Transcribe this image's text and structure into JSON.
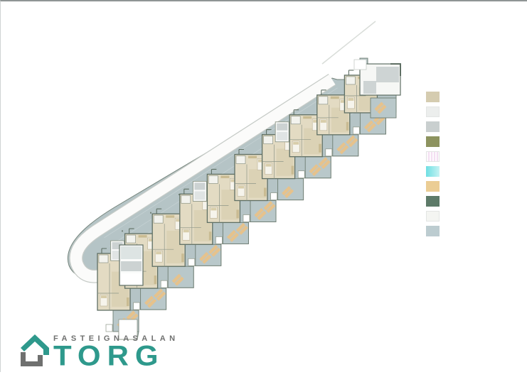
{
  "page": {
    "background": "#ffffff",
    "top_border": "#8f9595"
  },
  "logo": {
    "brand_top": "FASTEIGNASALAN",
    "brand_main": "TORG",
    "teal": "#2e998c",
    "gray": "#6f706f"
  },
  "legend": {
    "swatches": [
      {
        "name": "beige-floor",
        "style": "solid",
        "color": "#d5ccb0"
      },
      {
        "name": "light-gray",
        "style": "solid",
        "color": "#eceeed"
      },
      {
        "name": "gray",
        "style": "solid",
        "color": "#c9cfcf"
      },
      {
        "name": "olive-green",
        "style": "solid",
        "color": "#8d935f"
      },
      {
        "name": "pink-stripe",
        "style": "stripes",
        "color": "#f4dff2",
        "color2": "#fdfafd"
      },
      {
        "name": "cyan",
        "style": "gradient",
        "color": "#6fdfe3",
        "color2": "#c6f3f3"
      },
      {
        "name": "sand-tan",
        "style": "solid",
        "color": "#ebcd94"
      },
      {
        "name": "dark-green",
        "style": "solid",
        "color": "#5d7a68"
      },
      {
        "name": "near-white",
        "style": "solid",
        "color": "#f4f5f2"
      },
      {
        "name": "blue-gray-deck",
        "style": "solid",
        "color": "#bcccd0"
      }
    ]
  },
  "plan": {
    "palette": {
      "parking": "#b5c4c6",
      "parking_line": "#c6d2d4",
      "terrace": "#b9c8ca",
      "mass_stroke": "#74837a",
      "wall_dark": "#5f6f64",
      "wall_mid": "#8e9688",
      "room": "#e3dbc3",
      "room_alt": "#dbd2b5",
      "bath": "#f3f3ee",
      "core": "#fafbfa",
      "core_room": "#ccd2d2",
      "core_room2": "#e0e4e4",
      "road": "#fbfbfa",
      "road_edge": "#c6cbc7",
      "chair": "#e6c28c",
      "furniture": "#c9bb92",
      "bed": "#f6f4ec",
      "pillow": "#d8cdaa",
      "boundary": "#d9ddd9",
      "building": "#f6f7f5",
      "building_room": "#ced4d4",
      "lobby_room": "#dde4e3"
    },
    "unit_count": 10,
    "clusters": [
      {
        "core": false,
        "chairs": 2
      },
      {
        "core": true,
        "chairs": 2
      },
      {
        "core": false,
        "chairs": 1
      },
      {
        "core": false,
        "chairs": 2
      },
      {
        "core": true,
        "chairs": 2
      },
      {
        "core": false,
        "chairs": 2
      },
      {
        "core": false,
        "chairs": 1
      },
      {
        "core": true,
        "chairs": 2
      },
      {
        "core": false,
        "chairs": 2
      },
      {
        "core": false,
        "chairs": 2
      }
    ]
  }
}
